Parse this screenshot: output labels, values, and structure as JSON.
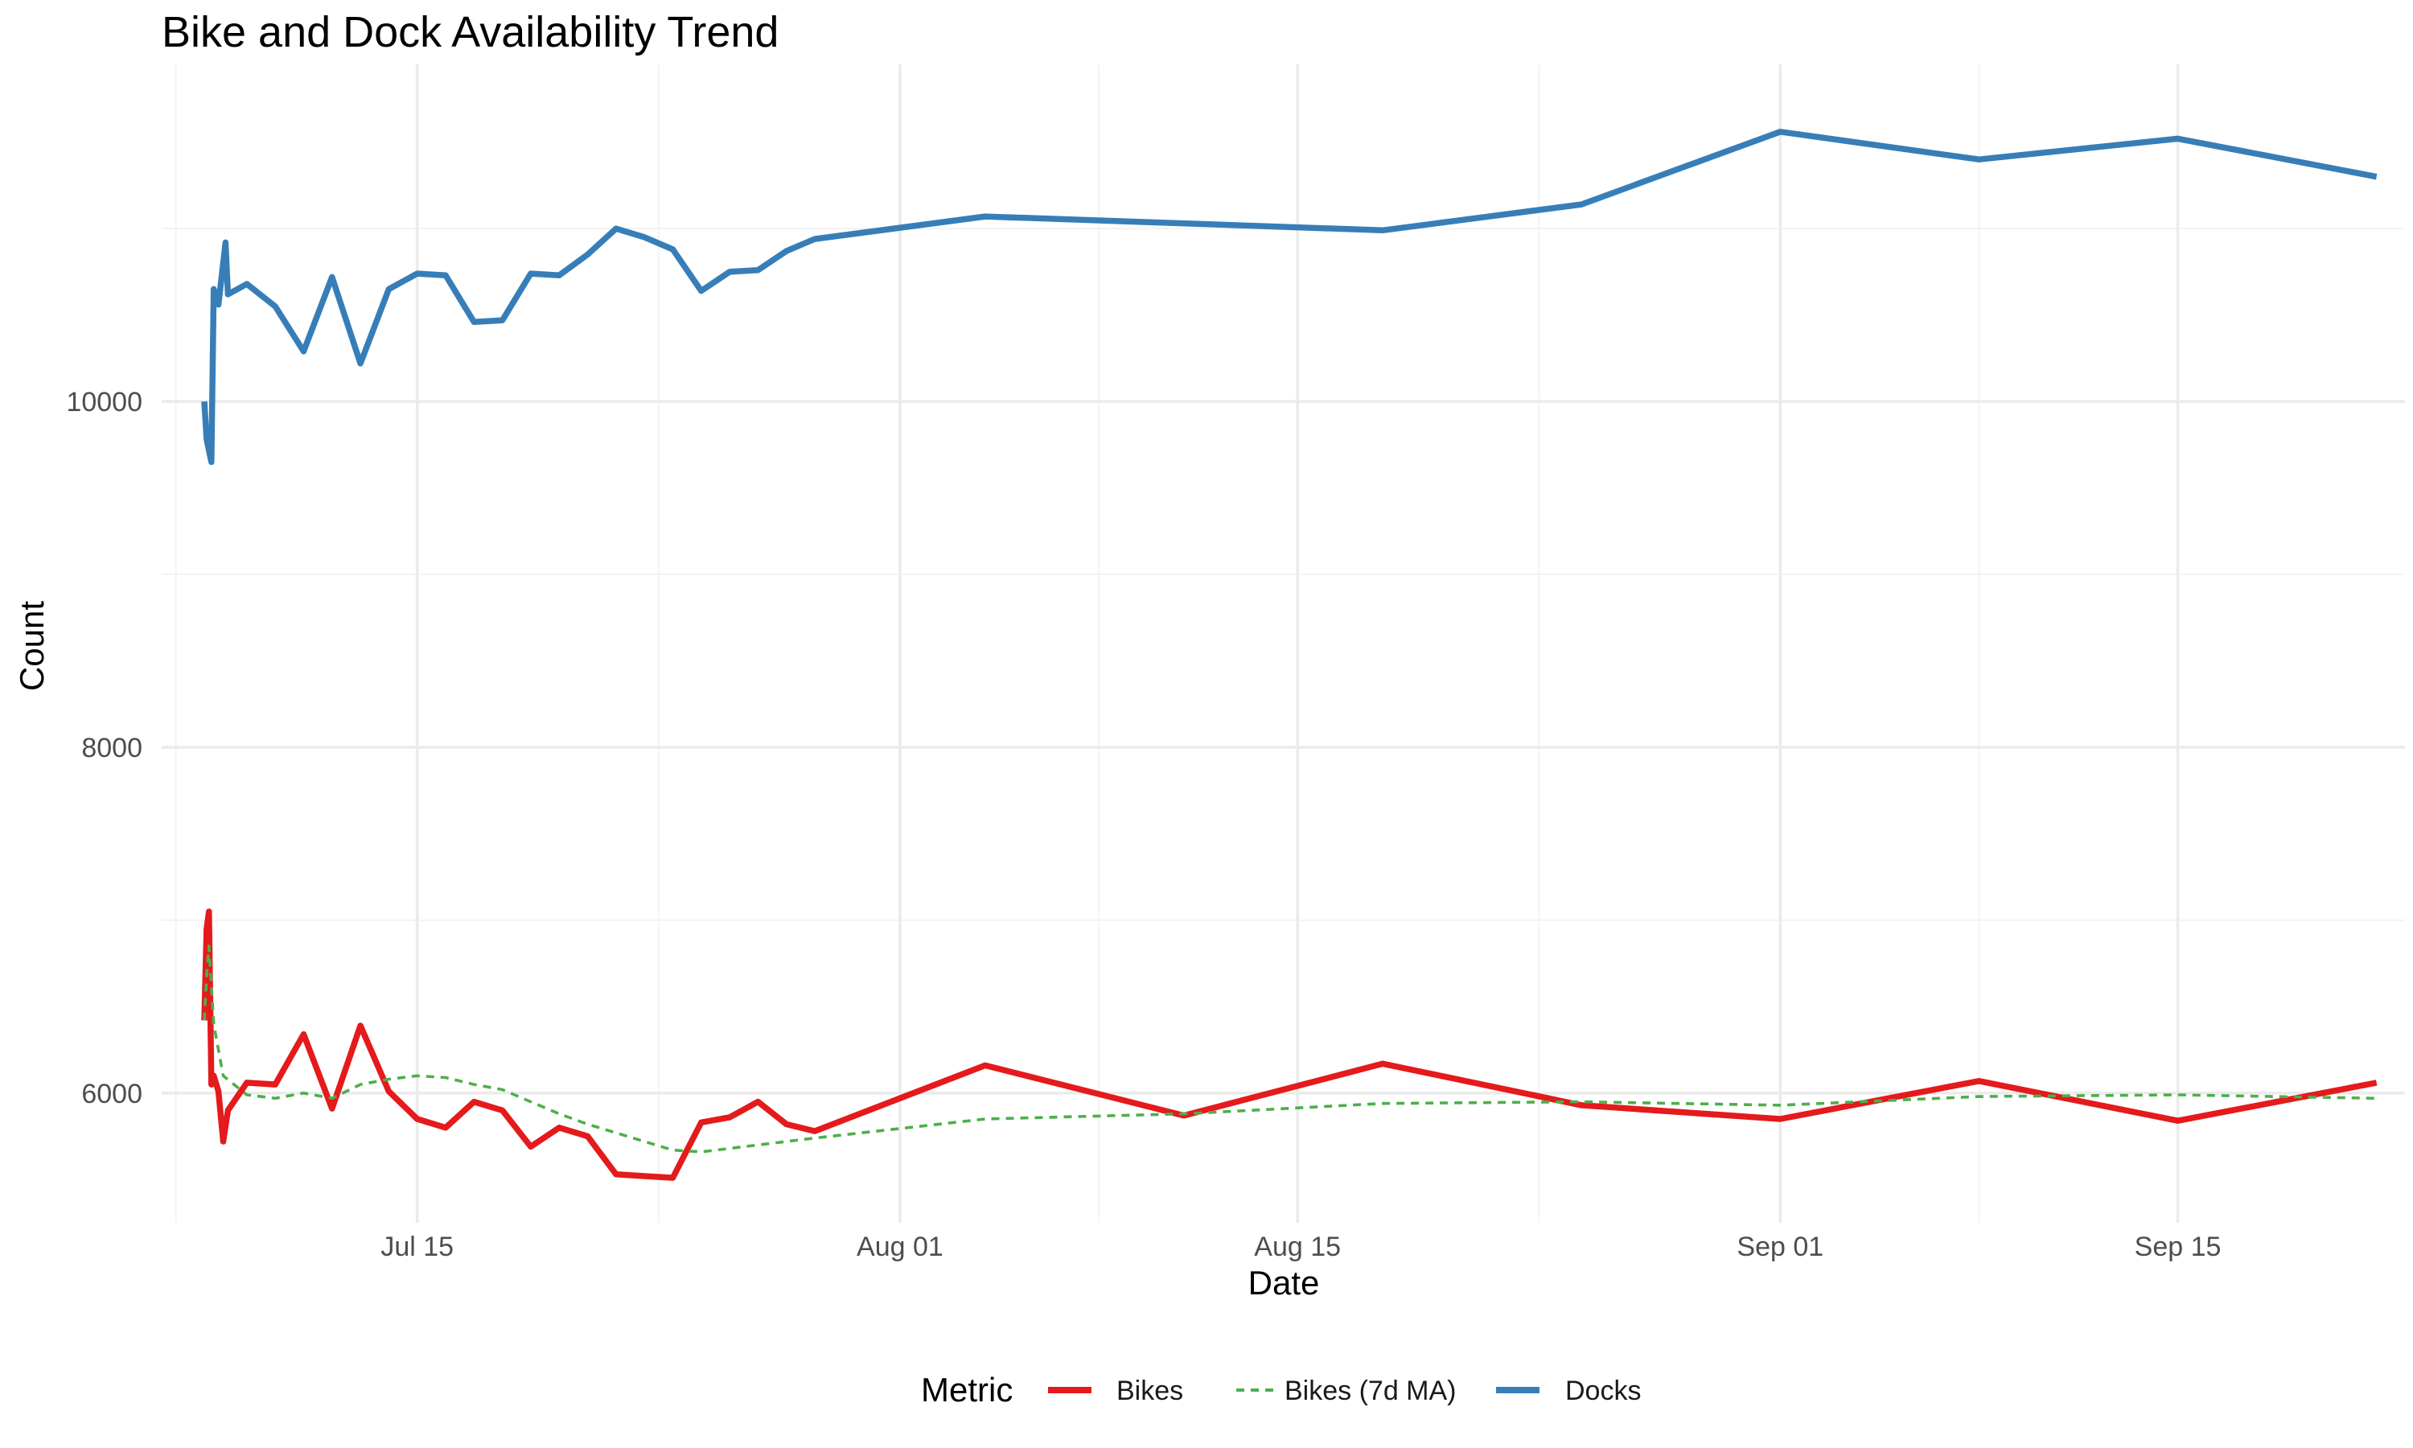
{
  "chart_data": {
    "type": "line",
    "title": "Bike and Dock Availability Trend",
    "xlabel": "Date",
    "ylabel": "Count",
    "x_type": "date",
    "xlim": [
      "2024-07-06",
      "2024-09-23"
    ],
    "ylim": [
      5250,
      11950
    ],
    "x_ticks": [
      {
        "date": "2024-07-15",
        "label": "Jul 15"
      },
      {
        "date": "2024-08-01",
        "label": "Aug 01"
      },
      {
        "date": "2024-08-15",
        "label": "Aug 15"
      },
      {
        "date": "2024-09-01",
        "label": "Sep 01"
      },
      {
        "date": "2024-09-15",
        "label": "Sep 15"
      }
    ],
    "y_ticks": [
      6000,
      8000,
      10000
    ],
    "grid": true,
    "legend": {
      "title": "Metric",
      "position": "bottom",
      "entries": [
        {
          "label": "Bikes",
          "color": "#E41A1C",
          "style": "solid"
        },
        {
          "label": "Bikes (7d MA)",
          "color": "#4DAF4A",
          "style": "dashed"
        },
        {
          "label": "Docks",
          "color": "#377EB8",
          "style": "solid"
        }
      ]
    },
    "series": [
      {
        "name": "Docks",
        "color": "#377EB8",
        "style": "solid",
        "points": [
          [
            "2024-07-07 12:00",
            10000
          ],
          [
            "2024-07-07 14:00",
            9780
          ],
          [
            "2024-07-07 18:00",
            9650
          ],
          [
            "2024-07-07 20:00",
            10650
          ],
          [
            "2024-07-08 00:00",
            10560
          ],
          [
            "2024-07-08 06:00",
            10920
          ],
          [
            "2024-07-08 08:00",
            10620
          ],
          [
            "2024-07-09",
            10680
          ],
          [
            "2024-07-10",
            10550
          ],
          [
            "2024-07-11",
            10290
          ],
          [
            "2024-07-12",
            10720
          ],
          [
            "2024-07-13",
            10220
          ],
          [
            "2024-07-14",
            10650
          ],
          [
            "2024-07-15",
            10740
          ],
          [
            "2024-07-16",
            10730
          ],
          [
            "2024-07-17",
            10460
          ],
          [
            "2024-07-18",
            10470
          ],
          [
            "2024-07-19",
            10740
          ],
          [
            "2024-07-20",
            10730
          ],
          [
            "2024-07-21",
            10850
          ],
          [
            "2024-07-22",
            11000
          ],
          [
            "2024-07-23",
            10950
          ],
          [
            "2024-07-24",
            10880
          ],
          [
            "2024-07-25",
            10640
          ],
          [
            "2024-07-26",
            10750
          ],
          [
            "2024-07-27",
            10760
          ],
          [
            "2024-07-28",
            10870
          ],
          [
            "2024-07-29",
            10940
          ],
          [
            "2024-08-04",
            11070
          ],
          [
            "2024-08-18",
            10990
          ],
          [
            "2024-08-25",
            11140
          ],
          [
            "2024-09-01",
            11560
          ],
          [
            "2024-09-08",
            11400
          ],
          [
            "2024-09-15",
            11520
          ],
          [
            "2024-09-22",
            11300
          ]
        ]
      },
      {
        "name": "Bikes",
        "color": "#E41A1C",
        "style": "solid",
        "points": [
          [
            "2024-07-07 12:00",
            6420
          ],
          [
            "2024-07-07 14:00",
            6950
          ],
          [
            "2024-07-07 16:00",
            7050
          ],
          [
            "2024-07-07 18:00",
            6050
          ],
          [
            "2024-07-07 20:00",
            6100
          ],
          [
            "2024-07-08 00:00",
            6010
          ],
          [
            "2024-07-08 04:00",
            5720
          ],
          [
            "2024-07-08 08:00",
            5900
          ],
          [
            "2024-07-09",
            6060
          ],
          [
            "2024-07-10",
            6050
          ],
          [
            "2024-07-11",
            6340
          ],
          [
            "2024-07-12",
            5910
          ],
          [
            "2024-07-13",
            6390
          ],
          [
            "2024-07-14",
            6010
          ],
          [
            "2024-07-15",
            5850
          ],
          [
            "2024-07-16",
            5800
          ],
          [
            "2024-07-17",
            5950
          ],
          [
            "2024-07-18",
            5900
          ],
          [
            "2024-07-19",
            5690
          ],
          [
            "2024-07-20",
            5800
          ],
          [
            "2024-07-21",
            5750
          ],
          [
            "2024-07-22",
            5530
          ],
          [
            "2024-07-23",
            5520
          ],
          [
            "2024-07-24",
            5510
          ],
          [
            "2024-07-25",
            5830
          ],
          [
            "2024-07-26",
            5860
          ],
          [
            "2024-07-27",
            5950
          ],
          [
            "2024-07-28",
            5820
          ],
          [
            "2024-07-29",
            5780
          ],
          [
            "2024-08-04",
            6160
          ],
          [
            "2024-08-11",
            5870
          ],
          [
            "2024-08-18",
            6170
          ],
          [
            "2024-08-25",
            5930
          ],
          [
            "2024-09-01",
            5850
          ],
          [
            "2024-09-08",
            6070
          ],
          [
            "2024-09-15",
            5840
          ],
          [
            "2024-09-22",
            6060
          ]
        ]
      },
      {
        "name": "Bikes (7d MA)",
        "color": "#4DAF4A",
        "style": "dashed",
        "points": [
          [
            "2024-07-07 12:00",
            6420
          ],
          [
            "2024-07-07 14:00",
            6680
          ],
          [
            "2024-07-07 16:00",
            6850
          ],
          [
            "2024-07-07 20:00",
            6400
          ],
          [
            "2024-07-08 04:00",
            6100
          ],
          [
            "2024-07-09",
            5990
          ],
          [
            "2024-07-10",
            5970
          ],
          [
            "2024-07-11",
            6000
          ],
          [
            "2024-07-12",
            5970
          ],
          [
            "2024-07-13",
            6050
          ],
          [
            "2024-07-14",
            6080
          ],
          [
            "2024-07-15",
            6100
          ],
          [
            "2024-07-16",
            6090
          ],
          [
            "2024-07-17",
            6050
          ],
          [
            "2024-07-18",
            6020
          ],
          [
            "2024-07-19",
            5950
          ],
          [
            "2024-07-20",
            5880
          ],
          [
            "2024-07-21",
            5820
          ],
          [
            "2024-07-22",
            5770
          ],
          [
            "2024-07-23",
            5720
          ],
          [
            "2024-07-24",
            5670
          ],
          [
            "2024-07-25",
            5660
          ],
          [
            "2024-07-26",
            5680
          ],
          [
            "2024-07-27",
            5700
          ],
          [
            "2024-07-28",
            5720
          ],
          [
            "2024-07-29",
            5740
          ],
          [
            "2024-08-04",
            5850
          ],
          [
            "2024-08-11",
            5880
          ],
          [
            "2024-08-18",
            5940
          ],
          [
            "2024-08-25",
            5950
          ],
          [
            "2024-09-01",
            5930
          ],
          [
            "2024-09-08",
            5980
          ],
          [
            "2024-09-15",
            5990
          ],
          [
            "2024-09-22",
            5970
          ]
        ]
      }
    ]
  }
}
